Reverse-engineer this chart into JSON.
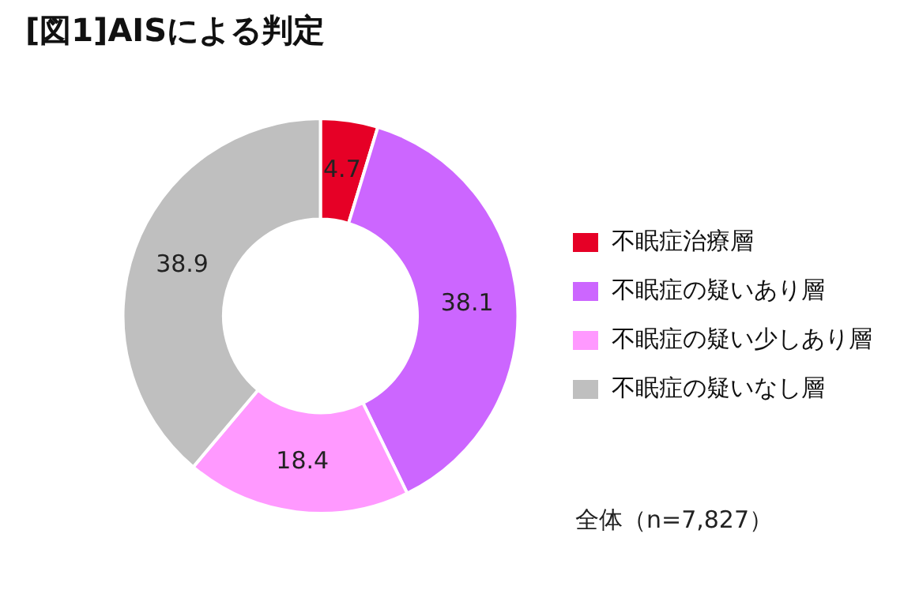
{
  "chart_data": {
    "type": "donut",
    "title": "[図1]AISによる判定",
    "categories": [
      "不眠症治療層",
      "不眠症の疑いあり層",
      "不眠症の疑い少しあり層",
      "不眠症の疑いなし層"
    ],
    "values": [
      4.7,
      38.1,
      18.4,
      38.9
    ],
    "colors": [
      "#e60026",
      "#cc66ff",
      "#ff99ff",
      "#bfbfbf"
    ],
    "data_labels": true,
    "legend": "right",
    "annotations": [
      "全体（n=7,827）"
    ]
  }
}
